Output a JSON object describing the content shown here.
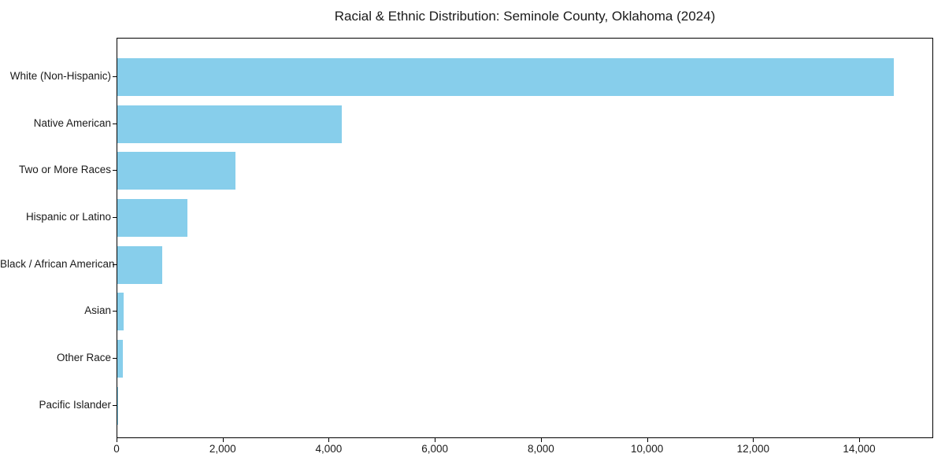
{
  "title": "Racial & Ethnic Distribution: Seminole County, Oklahoma (2024)",
  "chart_data": {
    "type": "bar",
    "orientation": "horizontal",
    "title": "Racial & Ethnic Distribution: Seminole County, Oklahoma (2024)",
    "categories": [
      "White (Non-Hispanic)",
      "Native American",
      "Two or More Races",
      "Hispanic or Latino",
      "Black / African American",
      "Asian",
      "Other Race",
      "Pacific Islander"
    ],
    "values": [
      14640,
      4230,
      2225,
      1315,
      850,
      125,
      105,
      15
    ],
    "xlabel": "",
    "ylabel": "",
    "xlim": [
      0,
      15365
    ],
    "x_ticks": [
      0,
      2000,
      4000,
      6000,
      8000,
      10000,
      12000,
      14000
    ],
    "x_tick_labels": [
      "0",
      "2,000",
      "4,000",
      "6,000",
      "8,000",
      "10,000",
      "12,000",
      "14,000"
    ],
    "bar_color": "#87CEEB",
    "axis_color": "#000000",
    "background_color": "#FFFFFF",
    "grid": false,
    "legend_position": "none"
  }
}
